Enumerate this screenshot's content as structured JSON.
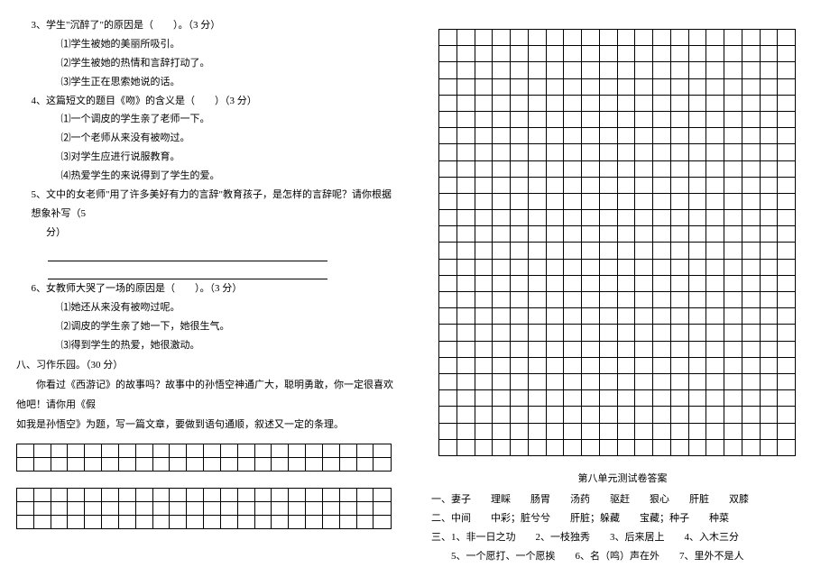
{
  "left": {
    "q3": {
      "stem": "3、学生\"沉醉了\"的原因是（　　）。（3 分）",
      "opts": [
        "⑴学生被她的美丽所吸引。",
        "⑵学生被她的热情和言辞打动了。",
        "⑶学生正在思索她说的话。"
      ]
    },
    "q4": {
      "stem": "4、这篇短文的题目《吻》的含义是（　　）（3 分）",
      "opts": [
        "⑴一个调皮的学生亲了老师一下。",
        "⑵一个老师从来没有被吻过。",
        "⑶对学生应进行说服教育。",
        "⑷热爱学生的来说得到了学生的爱。"
      ]
    },
    "q5": {
      "stem_a": "5、文中的女老师\"用了许多美好有力的言辞\"教育孩子，是怎样的言辞呢？请你根据想象补写（5",
      "stem_b": "分）"
    },
    "q6": {
      "stem": "6、女教师大哭了一场的原因是（　　）。（3 分）",
      "opts": [
        "⑴她还从来没有被吻过呢。",
        "⑵调皮的学生亲了她一下，她很生气。",
        "⑶得到学生的热爱，她很激动。"
      ]
    },
    "sec8": {
      "head": "八、习作乐园。（30 分）",
      "p1": "你看过《西游记》的故事吗？故事中的孙悟空神通广大，聪明勇敢，你一定很喜欢他吧！请你用《假",
      "p2": "如我是孙悟空》为题，写一篇文章，要做到语句通顺，叙述又一定的条理。"
    },
    "grid": {
      "cols": 22,
      "block1_rows": 2,
      "block2_rows": 3
    }
  },
  "right": {
    "grid": {
      "cols": 20,
      "rows": 26
    },
    "answers": {
      "title": "第八单元测试卷答案",
      "lines": [
        "一、妻子　　理睬　　肠胃　　汤药　　驱赶　　狠心　　肝脏　　双膝",
        "二、中间　　中彩；脏兮兮　　肝脏；躲藏　　宝藏；种子　　种菜",
        "三、1、非一日之功　　2、一枝独秀　　3、后来居上　　4、入木三分",
        "　　5、一个愿打、一个愿挨　　6、名（鸣）声在外　　7、里外不是人"
      ]
    }
  }
}
